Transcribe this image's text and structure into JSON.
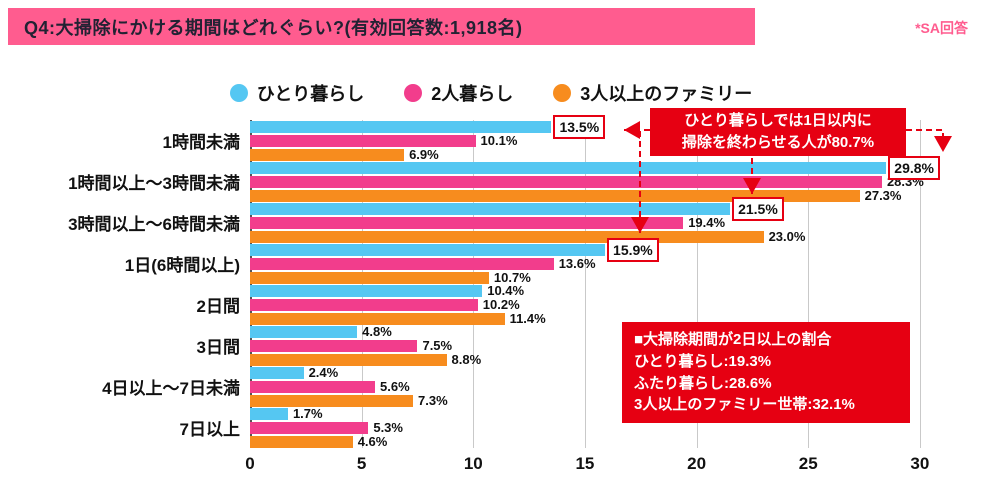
{
  "header": {
    "title": "Q4:大掃除にかける期間はどれぐらい?(有効回答数:1,918名)",
    "note": "*SA回答",
    "banner_color": "#ff5c8f"
  },
  "chart_data": {
    "type": "bar",
    "orientation": "horizontal",
    "title": "Q4:大掃除にかける期間はどれぐらい?(有効回答数:1,918名)",
    "categories": [
      "1時間未満",
      "1時間以上〜3時間未満",
      "3時間以上〜6時間未満",
      "1日(6時間以上)",
      "2日間",
      "3日間",
      "4日以上〜7日未満",
      "7日以上"
    ],
    "series": [
      {
        "name": "ひとり暮らし",
        "color": "#55c7f2",
        "values": [
          13.5,
          29.8,
          21.5,
          15.9,
          10.4,
          4.8,
          2.4,
          1.7
        ],
        "labels": [
          "13.5%",
          "29.8%",
          "21.5%",
          "15.9%",
          "10.4%",
          "4.8%",
          "2.4%",
          "1.7%"
        ]
      },
      {
        "name": "2人暮らし",
        "color": "#f23d8c",
        "values": [
          10.1,
          28.3,
          19.4,
          13.6,
          10.2,
          7.5,
          5.6,
          5.3
        ],
        "labels": [
          "10.1%",
          "28.3%",
          "19.4%",
          "13.6%",
          "10.2%",
          "7.5%",
          "5.6%",
          "5.3%"
        ]
      },
      {
        "name": "3人以上のファミリー",
        "color": "#f78c1e",
        "values": [
          6.9,
          27.3,
          23.0,
          10.7,
          11.4,
          8.8,
          7.3,
          4.6
        ],
        "labels": [
          "6.9%",
          "27.3%",
          "23.0%",
          "10.7%",
          "11.4%",
          "8.8%",
          "7.3%",
          "4.6%"
        ]
      }
    ],
    "xlim": [
      0,
      30
    ],
    "xticks": [
      0,
      5,
      10,
      15,
      20,
      25,
      30
    ],
    "x_extent": 30.9,
    "grid": true,
    "legend_position": "top",
    "highlight": {
      "series_index": 0,
      "category_indexes": [
        0,
        1,
        2,
        3
      ],
      "box_color": "#e60012"
    }
  },
  "annotations": {
    "callout": {
      "bg": "#e60012",
      "lines": [
        "ひとり暮らしでは1日以内に",
        "掃除を終わらせる人が80.7%"
      ]
    },
    "summary": {
      "bg": "#e60012",
      "lines": [
        "■大掃除期間が2日以上の割合",
        "ひとり暮らし:19.3%",
        "ふたり暮らし:28.6%",
        "3人以上のファミリー世帯:32.1%"
      ]
    }
  }
}
